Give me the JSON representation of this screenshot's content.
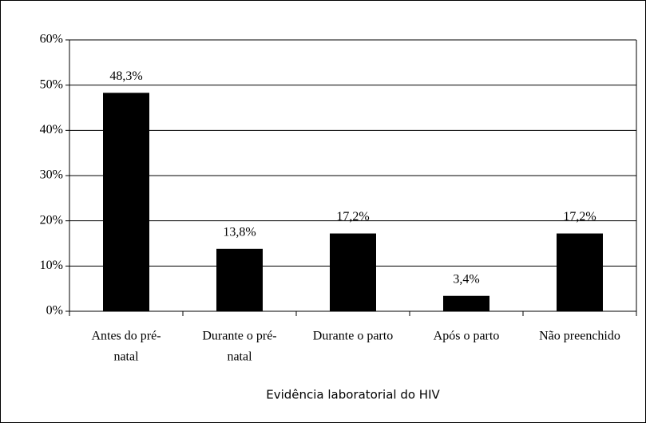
{
  "chart_data": {
    "type": "bar",
    "x_label": "Evidência laboratorial do HIV",
    "categories": [
      [
        "Antes do pré-",
        "natal"
      ],
      [
        "Durante o pré-",
        "natal"
      ],
      [
        "Durante o parto"
      ],
      [
        "Após o parto"
      ],
      [
        "Não preenchido"
      ]
    ],
    "values": [
      48.3,
      13.8,
      17.2,
      3.4,
      17.2
    ],
    "value_labels": [
      "48,3%",
      "13,8%",
      "17,2%",
      "3,4%",
      "17,2%"
    ],
    "color": "#000000",
    "ylim": [
      0,
      60
    ],
    "yticks": [
      {
        "value": 0,
        "label": "0%"
      },
      {
        "value": 10,
        "label": "10%"
      },
      {
        "value": 20,
        "label": "20%"
      },
      {
        "value": 30,
        "label": "30%"
      },
      {
        "value": 40,
        "label": "40%"
      },
      {
        "value": 50,
        "label": "50%"
      },
      {
        "value": 60,
        "label": "60%"
      }
    ],
    "grid": true
  }
}
